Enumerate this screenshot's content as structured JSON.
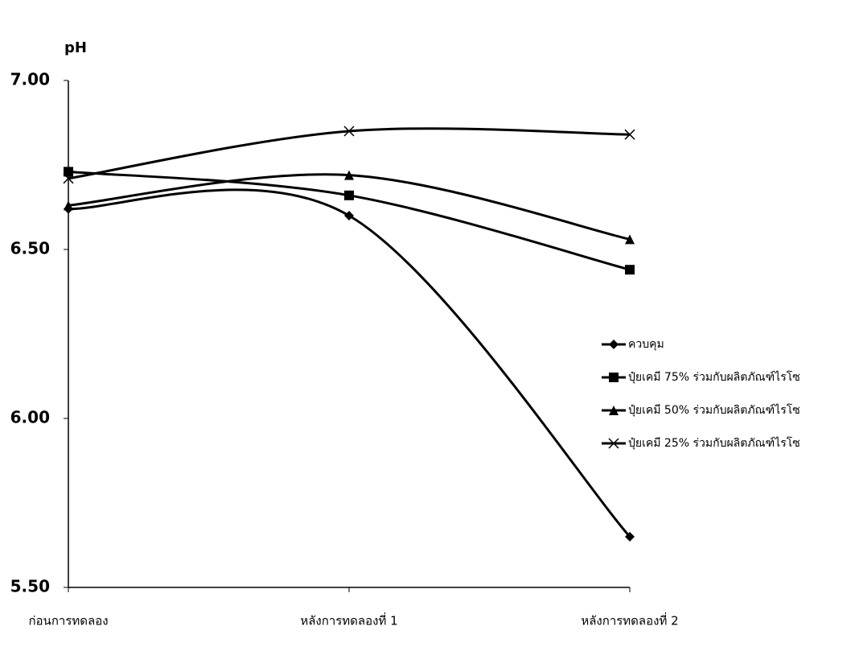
{
  "chart_data": {
    "type": "line",
    "y_label": "pH",
    "categories": [
      "ก่อนการทดลอง",
      "หลังการทดลองที่ 1",
      "หลังการทดลองที่ 2"
    ],
    "series": [
      {
        "name": "ควบคุม",
        "color": "#000000",
        "marker": "diamond",
        "values": [
          6.62,
          6.6,
          5.65
        ]
      },
      {
        "name": "ปุ๋ยเคมี 75% ร่วมกับผลิตภัณฑ์ไรโซ",
        "color": "#000000",
        "marker": "square",
        "values": [
          6.73,
          6.66,
          6.44
        ]
      },
      {
        "name": "ปุ๋ยเคมี 50% ร่วมกับผลิตภัณฑ์ไรโซ",
        "color": "#000000",
        "marker": "triangle",
        "values": [
          6.63,
          6.72,
          6.53
        ]
      },
      {
        "name": "ปุ๋ยเคมี 25% ร่วมกับผลิตภัณฑ์ไรโซ",
        "color": "#000000",
        "marker": "x",
        "values": [
          6.71,
          6.85,
          6.84
        ]
      }
    ],
    "ylim": [
      5.5,
      7.0
    ],
    "yticks": [
      {
        "value": 5.5,
        "label": "5.50"
      },
      {
        "value": 6.0,
        "label": "6.00"
      },
      {
        "value": 6.5,
        "label": "6.50"
      },
      {
        "value": 7.0,
        "label": "7.00"
      }
    ],
    "smooth": true,
    "grid": false,
    "legend": "right"
  }
}
